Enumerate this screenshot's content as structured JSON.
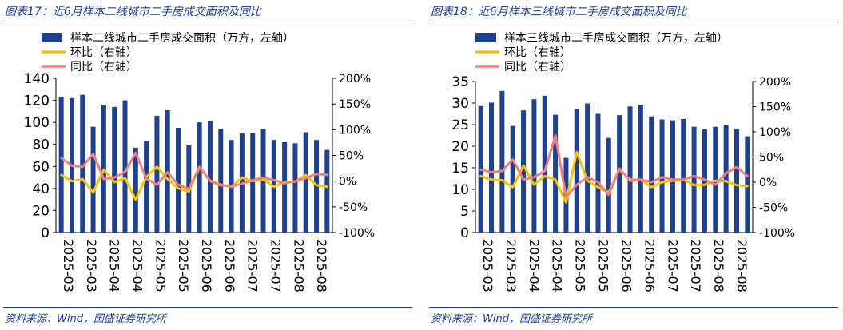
{
  "charts": [
    {
      "title": "图表17：近6月样本二线城市二手房成交面积及同比",
      "source": "资料来源：Wind，国盛证券研究所"
    },
    {
      "title": "图表18：近6月样本三线城市二手房成交面积及同比",
      "source": "资料来源：Wind，国盛证券研究所"
    }
  ],
  "chart_data": [
    {
      "type": "bar",
      "title": "图表17：近6月样本二线城市二手房成交面积及同比",
      "categories": [
        "2025-03",
        "2025-03",
        "2025-03",
        "2025-03",
        "2025-04",
        "2025-04",
        "2025-04",
        "2025-04",
        "2025-05",
        "2025-05",
        "2025-05",
        "2025-05",
        "2025-05",
        "2025-06",
        "2025-06",
        "2025-06",
        "2025-06",
        "2025-07",
        "2025-07",
        "2025-07",
        "2025-07",
        "2025-08",
        "2025-08",
        "2025-08",
        "2025-08",
        "2025-08"
      ],
      "x_tick_labels": [
        "2025-03",
        "2025-03",
        "2025-04",
        "2025-04",
        "2025-05",
        "2025-05",
        "2025-06",
        "2025-06",
        "2025-07",
        "2025-07",
        "2025-08",
        "2025-08"
      ],
      "series": [
        {
          "name": "样本二线城市二手房成交面积（万方，左轴）",
          "axis": "left",
          "kind": "bar",
          "color": "#1f3f8f",
          "values": [
            123,
            122,
            125,
            96,
            116,
            114,
            120,
            77,
            83,
            106,
            111,
            95,
            79,
            100,
            101,
            94,
            84,
            90,
            90,
            94,
            84,
            82,
            81,
            91,
            84,
            75
          ]
        },
        {
          "name": "环比（右轴）",
          "axis": "right",
          "kind": "line",
          "color": "#f5c400",
          "values": [
            0.12,
            0.0,
            0.04,
            -0.22,
            0.22,
            -0.02,
            0.06,
            -0.36,
            0.08,
            0.28,
            0.04,
            -0.14,
            -0.2,
            0.27,
            0.01,
            -0.07,
            -0.11,
            0.07,
            0.0,
            0.04,
            -0.11,
            -0.02,
            -0.01,
            0.12,
            -0.08,
            -0.11
          ]
        },
        {
          "name": "同比（右轴）",
          "axis": "right",
          "kind": "line",
          "color": "#f08080",
          "values": [
            0.45,
            0.3,
            0.28,
            0.53,
            0.04,
            0.07,
            0.18,
            0.55,
            0.05,
            -0.07,
            0.17,
            -0.07,
            -0.15,
            0.28,
            0.0,
            -0.08,
            -0.1,
            -0.05,
            0.02,
            0.07,
            0.02,
            -0.04,
            0.0,
            0.06,
            0.14,
            0.12
          ]
        }
      ],
      "ylim_left": [
        0,
        140
      ],
      "yticks_left": [
        0,
        20,
        40,
        60,
        80,
        100,
        120,
        140
      ],
      "ylim_right": [
        -1,
        2
      ],
      "yticks_right": [
        "-100%",
        "-50%",
        "0%",
        "50%",
        "100%",
        "150%",
        "200%"
      ],
      "legend": "top-left"
    },
    {
      "type": "bar",
      "title": "图表18：近6月样本三线城市二手房成交面积及同比",
      "categories": [
        "2025-03",
        "2025-03",
        "2025-03",
        "2025-03",
        "2025-04",
        "2025-04",
        "2025-04",
        "2025-04",
        "2025-05",
        "2025-05",
        "2025-05",
        "2025-05",
        "2025-05",
        "2025-06",
        "2025-06",
        "2025-06",
        "2025-06",
        "2025-07",
        "2025-07",
        "2025-07",
        "2025-07",
        "2025-08",
        "2025-08",
        "2025-08",
        "2025-08",
        "2025-08"
      ],
      "x_tick_labels": [
        "2025-03",
        "2025-03",
        "2025-04",
        "2025-04",
        "2025-05",
        "2025-05",
        "2025-06",
        "2025-06",
        "2025-07",
        "2025-07",
        "2025-08",
        "2025-08"
      ],
      "series": [
        {
          "name": "样本三线城市二手房成交面积（万方，左轴）",
          "axis": "left",
          "kind": "bar",
          "color": "#1f3f8f",
          "values": [
            29.3,
            30.1,
            32.8,
            24.7,
            28.3,
            30.9,
            31.7,
            27.3,
            17.3,
            28.7,
            29.9,
            27.5,
            21.9,
            27.2,
            29.2,
            29.6,
            26.9,
            26.2,
            26.0,
            26.3,
            24.5,
            23.9,
            24.5,
            24.9,
            24.0,
            22.3
          ]
        },
        {
          "name": "环比（右轴）",
          "axis": "right",
          "kind": "line",
          "color": "#f5c400",
          "values": [
            0.12,
            0.05,
            0.04,
            -0.1,
            0.33,
            -0.05,
            0.12,
            0.05,
            -0.4,
            0.6,
            0.03,
            -0.1,
            -0.2,
            0.25,
            0.05,
            0.05,
            -0.1,
            0.0,
            0.03,
            0.05,
            -0.06,
            -0.05,
            0.03,
            0.02,
            -0.06,
            -0.08
          ]
        },
        {
          "name": "同比（右轴）",
          "axis": "right",
          "kind": "line",
          "color": "#f08080",
          "values": [
            0.25,
            0.2,
            0.22,
            0.45,
            0.05,
            0.1,
            0.22,
            0.93,
            -0.3,
            -0.05,
            0.1,
            0.0,
            -0.25,
            0.27,
            0.03,
            0.05,
            0.0,
            0.1,
            0.05,
            0.05,
            0.12,
            0.05,
            -0.05,
            0.18,
            0.3,
            0.12
          ]
        }
      ],
      "ylim_left": [
        0,
        35
      ],
      "yticks_left": [
        0,
        5,
        10,
        15,
        20,
        25,
        30,
        35
      ],
      "ylim_right": [
        -1,
        2
      ],
      "yticks_right": [
        "-100%",
        "-50%",
        "0%",
        "50%",
        "100%",
        "150%",
        "200%"
      ],
      "legend": "top-left"
    }
  ]
}
